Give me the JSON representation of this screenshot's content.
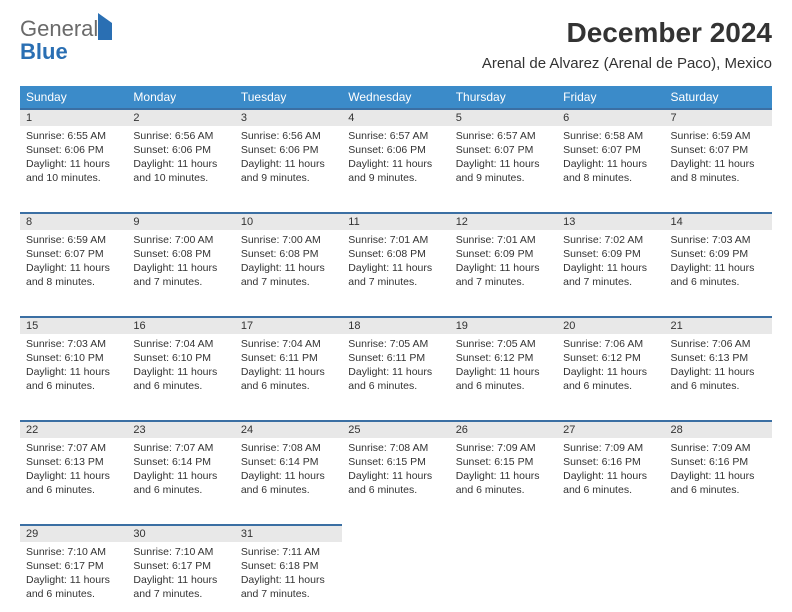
{
  "brand": {
    "text_grey": "General",
    "text_blue": "Blue"
  },
  "header": {
    "title": "December 2024",
    "location": "Arenal de Alvarez (Arenal de Paco), Mexico"
  },
  "colors": {
    "header_bg": "#3b8bc9",
    "header_text": "#ffffff",
    "daynum_bg": "#e8e8e8",
    "daynum_border": "#3b6fa3",
    "body_text": "#333333",
    "logo_grey": "#6a6a6a",
    "logo_blue": "#2a6fb3"
  },
  "weekdays": [
    "Sunday",
    "Monday",
    "Tuesday",
    "Wednesday",
    "Thursday",
    "Friday",
    "Saturday"
  ],
  "weeks": [
    [
      {
        "n": "1",
        "sr": "Sunrise: 6:55 AM",
        "ss": "Sunset: 6:06 PM",
        "d1": "Daylight: 11 hours",
        "d2": "and 10 minutes."
      },
      {
        "n": "2",
        "sr": "Sunrise: 6:56 AM",
        "ss": "Sunset: 6:06 PM",
        "d1": "Daylight: 11 hours",
        "d2": "and 10 minutes."
      },
      {
        "n": "3",
        "sr": "Sunrise: 6:56 AM",
        "ss": "Sunset: 6:06 PM",
        "d1": "Daylight: 11 hours",
        "d2": "and 9 minutes."
      },
      {
        "n": "4",
        "sr": "Sunrise: 6:57 AM",
        "ss": "Sunset: 6:06 PM",
        "d1": "Daylight: 11 hours",
        "d2": "and 9 minutes."
      },
      {
        "n": "5",
        "sr": "Sunrise: 6:57 AM",
        "ss": "Sunset: 6:07 PM",
        "d1": "Daylight: 11 hours",
        "d2": "and 9 minutes."
      },
      {
        "n": "6",
        "sr": "Sunrise: 6:58 AM",
        "ss": "Sunset: 6:07 PM",
        "d1": "Daylight: 11 hours",
        "d2": "and 8 minutes."
      },
      {
        "n": "7",
        "sr": "Sunrise: 6:59 AM",
        "ss": "Sunset: 6:07 PM",
        "d1": "Daylight: 11 hours",
        "d2": "and 8 minutes."
      }
    ],
    [
      {
        "n": "8",
        "sr": "Sunrise: 6:59 AM",
        "ss": "Sunset: 6:07 PM",
        "d1": "Daylight: 11 hours",
        "d2": "and 8 minutes."
      },
      {
        "n": "9",
        "sr": "Sunrise: 7:00 AM",
        "ss": "Sunset: 6:08 PM",
        "d1": "Daylight: 11 hours",
        "d2": "and 7 minutes."
      },
      {
        "n": "10",
        "sr": "Sunrise: 7:00 AM",
        "ss": "Sunset: 6:08 PM",
        "d1": "Daylight: 11 hours",
        "d2": "and 7 minutes."
      },
      {
        "n": "11",
        "sr": "Sunrise: 7:01 AM",
        "ss": "Sunset: 6:08 PM",
        "d1": "Daylight: 11 hours",
        "d2": "and 7 minutes."
      },
      {
        "n": "12",
        "sr": "Sunrise: 7:01 AM",
        "ss": "Sunset: 6:09 PM",
        "d1": "Daylight: 11 hours",
        "d2": "and 7 minutes."
      },
      {
        "n": "13",
        "sr": "Sunrise: 7:02 AM",
        "ss": "Sunset: 6:09 PM",
        "d1": "Daylight: 11 hours",
        "d2": "and 7 minutes."
      },
      {
        "n": "14",
        "sr": "Sunrise: 7:03 AM",
        "ss": "Sunset: 6:09 PM",
        "d1": "Daylight: 11 hours",
        "d2": "and 6 minutes."
      }
    ],
    [
      {
        "n": "15",
        "sr": "Sunrise: 7:03 AM",
        "ss": "Sunset: 6:10 PM",
        "d1": "Daylight: 11 hours",
        "d2": "and 6 minutes."
      },
      {
        "n": "16",
        "sr": "Sunrise: 7:04 AM",
        "ss": "Sunset: 6:10 PM",
        "d1": "Daylight: 11 hours",
        "d2": "and 6 minutes."
      },
      {
        "n": "17",
        "sr": "Sunrise: 7:04 AM",
        "ss": "Sunset: 6:11 PM",
        "d1": "Daylight: 11 hours",
        "d2": "and 6 minutes."
      },
      {
        "n": "18",
        "sr": "Sunrise: 7:05 AM",
        "ss": "Sunset: 6:11 PM",
        "d1": "Daylight: 11 hours",
        "d2": "and 6 minutes."
      },
      {
        "n": "19",
        "sr": "Sunrise: 7:05 AM",
        "ss": "Sunset: 6:12 PM",
        "d1": "Daylight: 11 hours",
        "d2": "and 6 minutes."
      },
      {
        "n": "20",
        "sr": "Sunrise: 7:06 AM",
        "ss": "Sunset: 6:12 PM",
        "d1": "Daylight: 11 hours",
        "d2": "and 6 minutes."
      },
      {
        "n": "21",
        "sr": "Sunrise: 7:06 AM",
        "ss": "Sunset: 6:13 PM",
        "d1": "Daylight: 11 hours",
        "d2": "and 6 minutes."
      }
    ],
    [
      {
        "n": "22",
        "sr": "Sunrise: 7:07 AM",
        "ss": "Sunset: 6:13 PM",
        "d1": "Daylight: 11 hours",
        "d2": "and 6 minutes."
      },
      {
        "n": "23",
        "sr": "Sunrise: 7:07 AM",
        "ss": "Sunset: 6:14 PM",
        "d1": "Daylight: 11 hours",
        "d2": "and 6 minutes."
      },
      {
        "n": "24",
        "sr": "Sunrise: 7:08 AM",
        "ss": "Sunset: 6:14 PM",
        "d1": "Daylight: 11 hours",
        "d2": "and 6 minutes."
      },
      {
        "n": "25",
        "sr": "Sunrise: 7:08 AM",
        "ss": "Sunset: 6:15 PM",
        "d1": "Daylight: 11 hours",
        "d2": "and 6 minutes."
      },
      {
        "n": "26",
        "sr": "Sunrise: 7:09 AM",
        "ss": "Sunset: 6:15 PM",
        "d1": "Daylight: 11 hours",
        "d2": "and 6 minutes."
      },
      {
        "n": "27",
        "sr": "Sunrise: 7:09 AM",
        "ss": "Sunset: 6:16 PM",
        "d1": "Daylight: 11 hours",
        "d2": "and 6 minutes."
      },
      {
        "n": "28",
        "sr": "Sunrise: 7:09 AM",
        "ss": "Sunset: 6:16 PM",
        "d1": "Daylight: 11 hours",
        "d2": "and 6 minutes."
      }
    ],
    [
      {
        "n": "29",
        "sr": "Sunrise: 7:10 AM",
        "ss": "Sunset: 6:17 PM",
        "d1": "Daylight: 11 hours",
        "d2": "and 6 minutes."
      },
      {
        "n": "30",
        "sr": "Sunrise: 7:10 AM",
        "ss": "Sunset: 6:17 PM",
        "d1": "Daylight: 11 hours",
        "d2": "and 7 minutes."
      },
      {
        "n": "31",
        "sr": "Sunrise: 7:11 AM",
        "ss": "Sunset: 6:18 PM",
        "d1": "Daylight: 11 hours",
        "d2": "and 7 minutes."
      },
      null,
      null,
      null,
      null
    ]
  ]
}
